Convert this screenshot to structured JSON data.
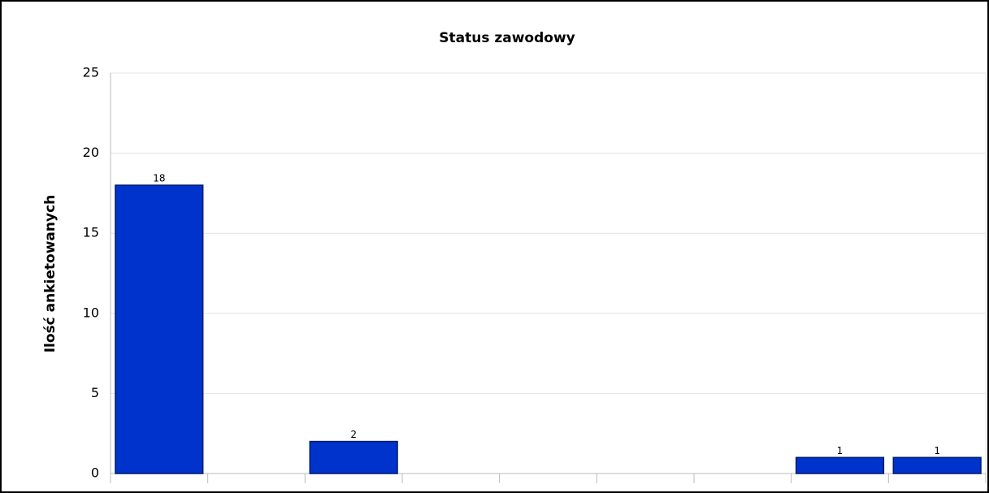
{
  "chart_data": {
    "type": "bar",
    "title": "Status zawodowy",
    "y_label": "Ilość ankietowanych",
    "categories": [
      null,
      null,
      null,
      null,
      null,
      null,
      null,
      null,
      null
    ],
    "values": [
      18,
      null,
      2,
      null,
      null,
      null,
      null,
      1,
      1
    ],
    "color": "#0033cc",
    "ylim": [
      0,
      25
    ],
    "yticks": [
      0,
      5,
      10,
      15,
      20,
      25
    ],
    "grid": true
  }
}
